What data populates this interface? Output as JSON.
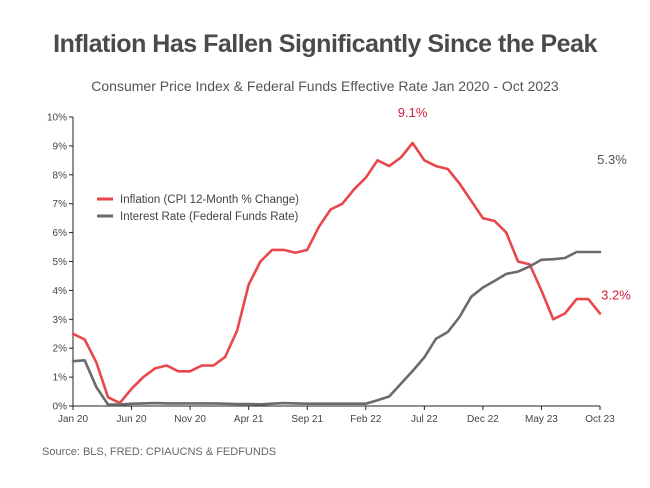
{
  "title": "Inflation Has Fallen Significantly Since the Peak",
  "subtitle": "Consumer Price Index & Federal Funds Effective Rate Jan 2020 - Oct 2023",
  "source": "Source: BLS, FRED: CPIAUCNS & FEDFUNDS",
  "chart_data": {
    "type": "line",
    "ylim": [
      0,
      10
    ],
    "y_ticks": [
      "0%",
      "1%",
      "2%",
      "3%",
      "4%",
      "5%",
      "6%",
      "7%",
      "8%",
      "9%",
      "10%"
    ],
    "x_ticks": [
      {
        "label": "Jan 20",
        "index": 0
      },
      {
        "label": "Jun 20",
        "index": 5
      },
      {
        "label": "Nov 20",
        "index": 10
      },
      {
        "label": "Apr 21",
        "index": 15
      },
      {
        "label": "Sep 21",
        "index": 20
      },
      {
        "label": "Feb 22",
        "index": 25
      },
      {
        "label": "Jul 22",
        "index": 30
      },
      {
        "label": "Dec 22",
        "index": 35
      },
      {
        "label": "May 23",
        "index": 40
      },
      {
        "label": "Oct 23",
        "index": 45
      }
    ],
    "grid": false,
    "legend_position": "upper-left",
    "series": [
      {
        "name": "Inflation (CPI 12-Month % Change)",
        "color": "#e8474b",
        "values": [
          2.5,
          2.3,
          1.5,
          0.3,
          0.1,
          0.6,
          1.0,
          1.3,
          1.4,
          1.2,
          1.2,
          1.4,
          1.4,
          1.7,
          2.6,
          4.2,
          5.0,
          5.4,
          5.4,
          5.3,
          5.4,
          6.2,
          6.8,
          7.0,
          7.5,
          7.9,
          8.5,
          8.3,
          8.6,
          9.1,
          8.5,
          8.3,
          8.2,
          7.7,
          7.1,
          6.5,
          6.4,
          6.0,
          5.0,
          4.9,
          4.0,
          3.0,
          3.2,
          3.7,
          3.7,
          3.2
        ]
      },
      {
        "name": "Interest Rate (Federal Funds Rate)",
        "color": "#6b6b6b",
        "values": [
          1.55,
          1.58,
          0.65,
          0.05,
          0.05,
          0.08,
          0.09,
          0.1,
          0.09,
          0.09,
          0.09,
          0.09,
          0.09,
          0.08,
          0.07,
          0.07,
          0.06,
          0.08,
          0.1,
          0.09,
          0.08,
          0.08,
          0.08,
          0.08,
          0.08,
          0.08,
          0.2,
          0.33,
          0.77,
          1.21,
          1.68,
          2.33,
          2.56,
          3.08,
          3.78,
          4.1,
          4.33,
          4.57,
          4.65,
          4.83,
          5.06,
          5.08,
          5.12,
          5.33,
          5.33,
          5.33
        ]
      }
    ],
    "annotations": [
      {
        "text": "9.1%",
        "series": 0,
        "index": 29,
        "color": "#d01f3c"
      },
      {
        "text": "5.3%",
        "series": 1,
        "index": 45,
        "color": "#555555"
      },
      {
        "text": "3.2%",
        "series": 0,
        "index": 45,
        "color": "#d01f3c"
      }
    ]
  }
}
